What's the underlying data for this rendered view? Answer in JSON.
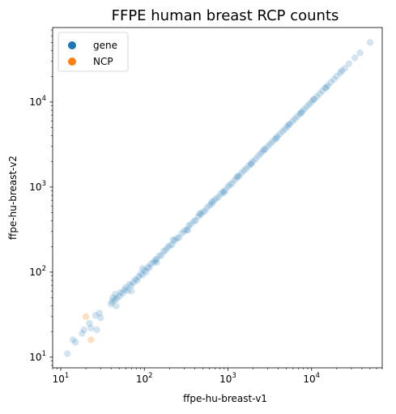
{
  "chart_data": {
    "type": "scatter",
    "title": "FFPE human breast RCP counts",
    "xlabel": "ffpe-hu-breast-v1",
    "ylabel": "ffpe-hu-breast-v2",
    "xscale": "log",
    "yscale": "log",
    "xlim": [
      8,
      70000
    ],
    "ylim": [
      7.5,
      75000
    ],
    "x_ticks": [
      {
        "value": 10,
        "base": "10",
        "exp": "1"
      },
      {
        "value": 100,
        "base": "10",
        "exp": "2"
      },
      {
        "value": 1000,
        "base": "10",
        "exp": "3"
      },
      {
        "value": 10000,
        "base": "10",
        "exp": "4"
      }
    ],
    "y_ticks": [
      {
        "value": 10,
        "base": "10",
        "exp": "1"
      },
      {
        "value": 100,
        "base": "10",
        "exp": "2"
      },
      {
        "value": 1000,
        "base": "10",
        "exp": "3"
      },
      {
        "value": 10000,
        "base": "10",
        "exp": "4"
      }
    ],
    "grid": false,
    "legend_position": "top-left",
    "series": [
      {
        "name": "gene",
        "color": "#1f77b4",
        "alpha": 0.2,
        "points": [
          [
            12,
            11
          ],
          [
            14,
            16
          ],
          [
            15,
            15
          ],
          [
            18,
            19
          ],
          [
            19,
            21
          ],
          [
            22,
            25
          ],
          [
            23,
            22
          ],
          [
            26,
            31
          ],
          [
            27,
            21
          ],
          [
            29,
            33
          ],
          [
            30,
            29
          ],
          [
            40,
            42
          ],
          [
            41,
            45
          ],
          [
            42,
            50
          ],
          [
            44,
            47
          ],
          [
            45,
            55
          ],
          [
            47,
            49
          ],
          [
            50,
            52
          ],
          [
            52,
            58
          ],
          [
            55,
            56
          ],
          [
            58,
            62
          ],
          [
            60,
            66
          ],
          [
            63,
            61
          ],
          [
            66,
            72
          ],
          [
            70,
            70
          ],
          [
            74,
            76
          ],
          [
            78,
            82
          ],
          [
            82,
            80
          ],
          [
            85,
            88
          ],
          [
            90,
            95
          ],
          [
            95,
            92
          ],
          [
            100,
            105
          ],
          [
            105,
            100
          ],
          [
            110,
            115
          ],
          [
            115,
            112
          ],
          [
            120,
            125
          ],
          [
            128,
            130
          ],
          [
            135,
            138
          ],
          [
            140,
            142
          ],
          [
            150,
            155
          ],
          [
            160,
            158
          ],
          [
            170,
            175
          ],
          [
            180,
            182
          ],
          [
            190,
            195
          ],
          [
            200,
            205
          ],
          [
            215,
            210
          ],
          [
            230,
            235
          ],
          [
            245,
            250
          ],
          [
            260,
            255
          ],
          [
            280,
            285
          ],
          [
            300,
            305
          ],
          [
            320,
            315
          ],
          [
            340,
            350
          ],
          [
            360,
            365
          ],
          [
            390,
            395
          ],
          [
            410,
            405
          ],
          [
            440,
            450
          ],
          [
            470,
            475
          ],
          [
            500,
            505
          ],
          [
            530,
            525
          ],
          [
            560,
            570
          ],
          [
            600,
            610
          ],
          [
            640,
            630
          ],
          [
            680,
            690
          ],
          [
            720,
            730
          ],
          [
            770,
            760
          ],
          [
            820,
            830
          ],
          [
            870,
            880
          ],
          [
            930,
            920
          ],
          [
            1000,
            1010
          ],
          [
            1050,
            1060
          ],
          [
            1120,
            1110
          ],
          [
            1200,
            1210
          ],
          [
            1280,
            1290
          ],
          [
            1360,
            1350
          ],
          [
            1450,
            1460
          ],
          [
            1550,
            1560
          ],
          [
            1650,
            1640
          ],
          [
            1760,
            1770
          ],
          [
            1880,
            1890
          ],
          [
            2000,
            2010
          ],
          [
            2150,
            2140
          ],
          [
            2300,
            2320
          ],
          [
            2450,
            2460
          ],
          [
            2600,
            2620
          ],
          [
            2800,
            2790
          ],
          [
            3000,
            3020
          ],
          [
            3200,
            3210
          ],
          [
            3400,
            3420
          ],
          [
            3650,
            3640
          ],
          [
            3900,
            3920
          ],
          [
            4200,
            4210
          ],
          [
            4500,
            4520
          ],
          [
            4800,
            4790
          ],
          [
            5100,
            5120
          ],
          [
            5500,
            5510
          ],
          [
            5900,
            5920
          ],
          [
            6300,
            6290
          ],
          [
            6700,
            6720
          ],
          [
            7200,
            7210
          ],
          [
            7700,
            7720
          ],
          [
            8200,
            8210
          ],
          [
            8800,
            8820
          ],
          [
            9400,
            9390
          ],
          [
            10000,
            10050
          ],
          [
            10800,
            10820
          ],
          [
            11600,
            11580
          ],
          [
            12500,
            12520
          ],
          [
            13500,
            13480
          ],
          [
            14500,
            14550
          ],
          [
            15600,
            15620
          ],
          [
            17000,
            17050
          ],
          [
            18500,
            18450
          ],
          [
            20000,
            20100
          ],
          [
            22000,
            22050
          ],
          [
            25000,
            24900
          ],
          [
            28000,
            28200
          ],
          [
            33000,
            33100
          ],
          [
            38000,
            37800
          ],
          [
            50000,
            50200
          ],
          [
            46,
            40
          ],
          [
            70,
            60
          ],
          [
            95,
            110
          ],
          [
            140,
            130
          ],
          [
            220,
            240
          ],
          [
            330,
            310
          ],
          [
            460,
            490
          ],
          [
            640,
            670
          ],
          [
            900,
            860
          ],
          [
            1300,
            1340
          ],
          [
            1900,
            1850
          ],
          [
            2700,
            2760
          ],
          [
            3800,
            3760
          ],
          [
            5300,
            5380
          ],
          [
            7500,
            7420
          ],
          [
            10500,
            10650
          ],
          [
            15000,
            14800
          ],
          [
            23000,
            23300
          ]
        ]
      },
      {
        "name": "NCP",
        "color": "#ff7f0e",
        "alpha": 0.25,
        "points": [
          [
            20,
            30
          ],
          [
            23,
            16
          ]
        ]
      }
    ]
  }
}
